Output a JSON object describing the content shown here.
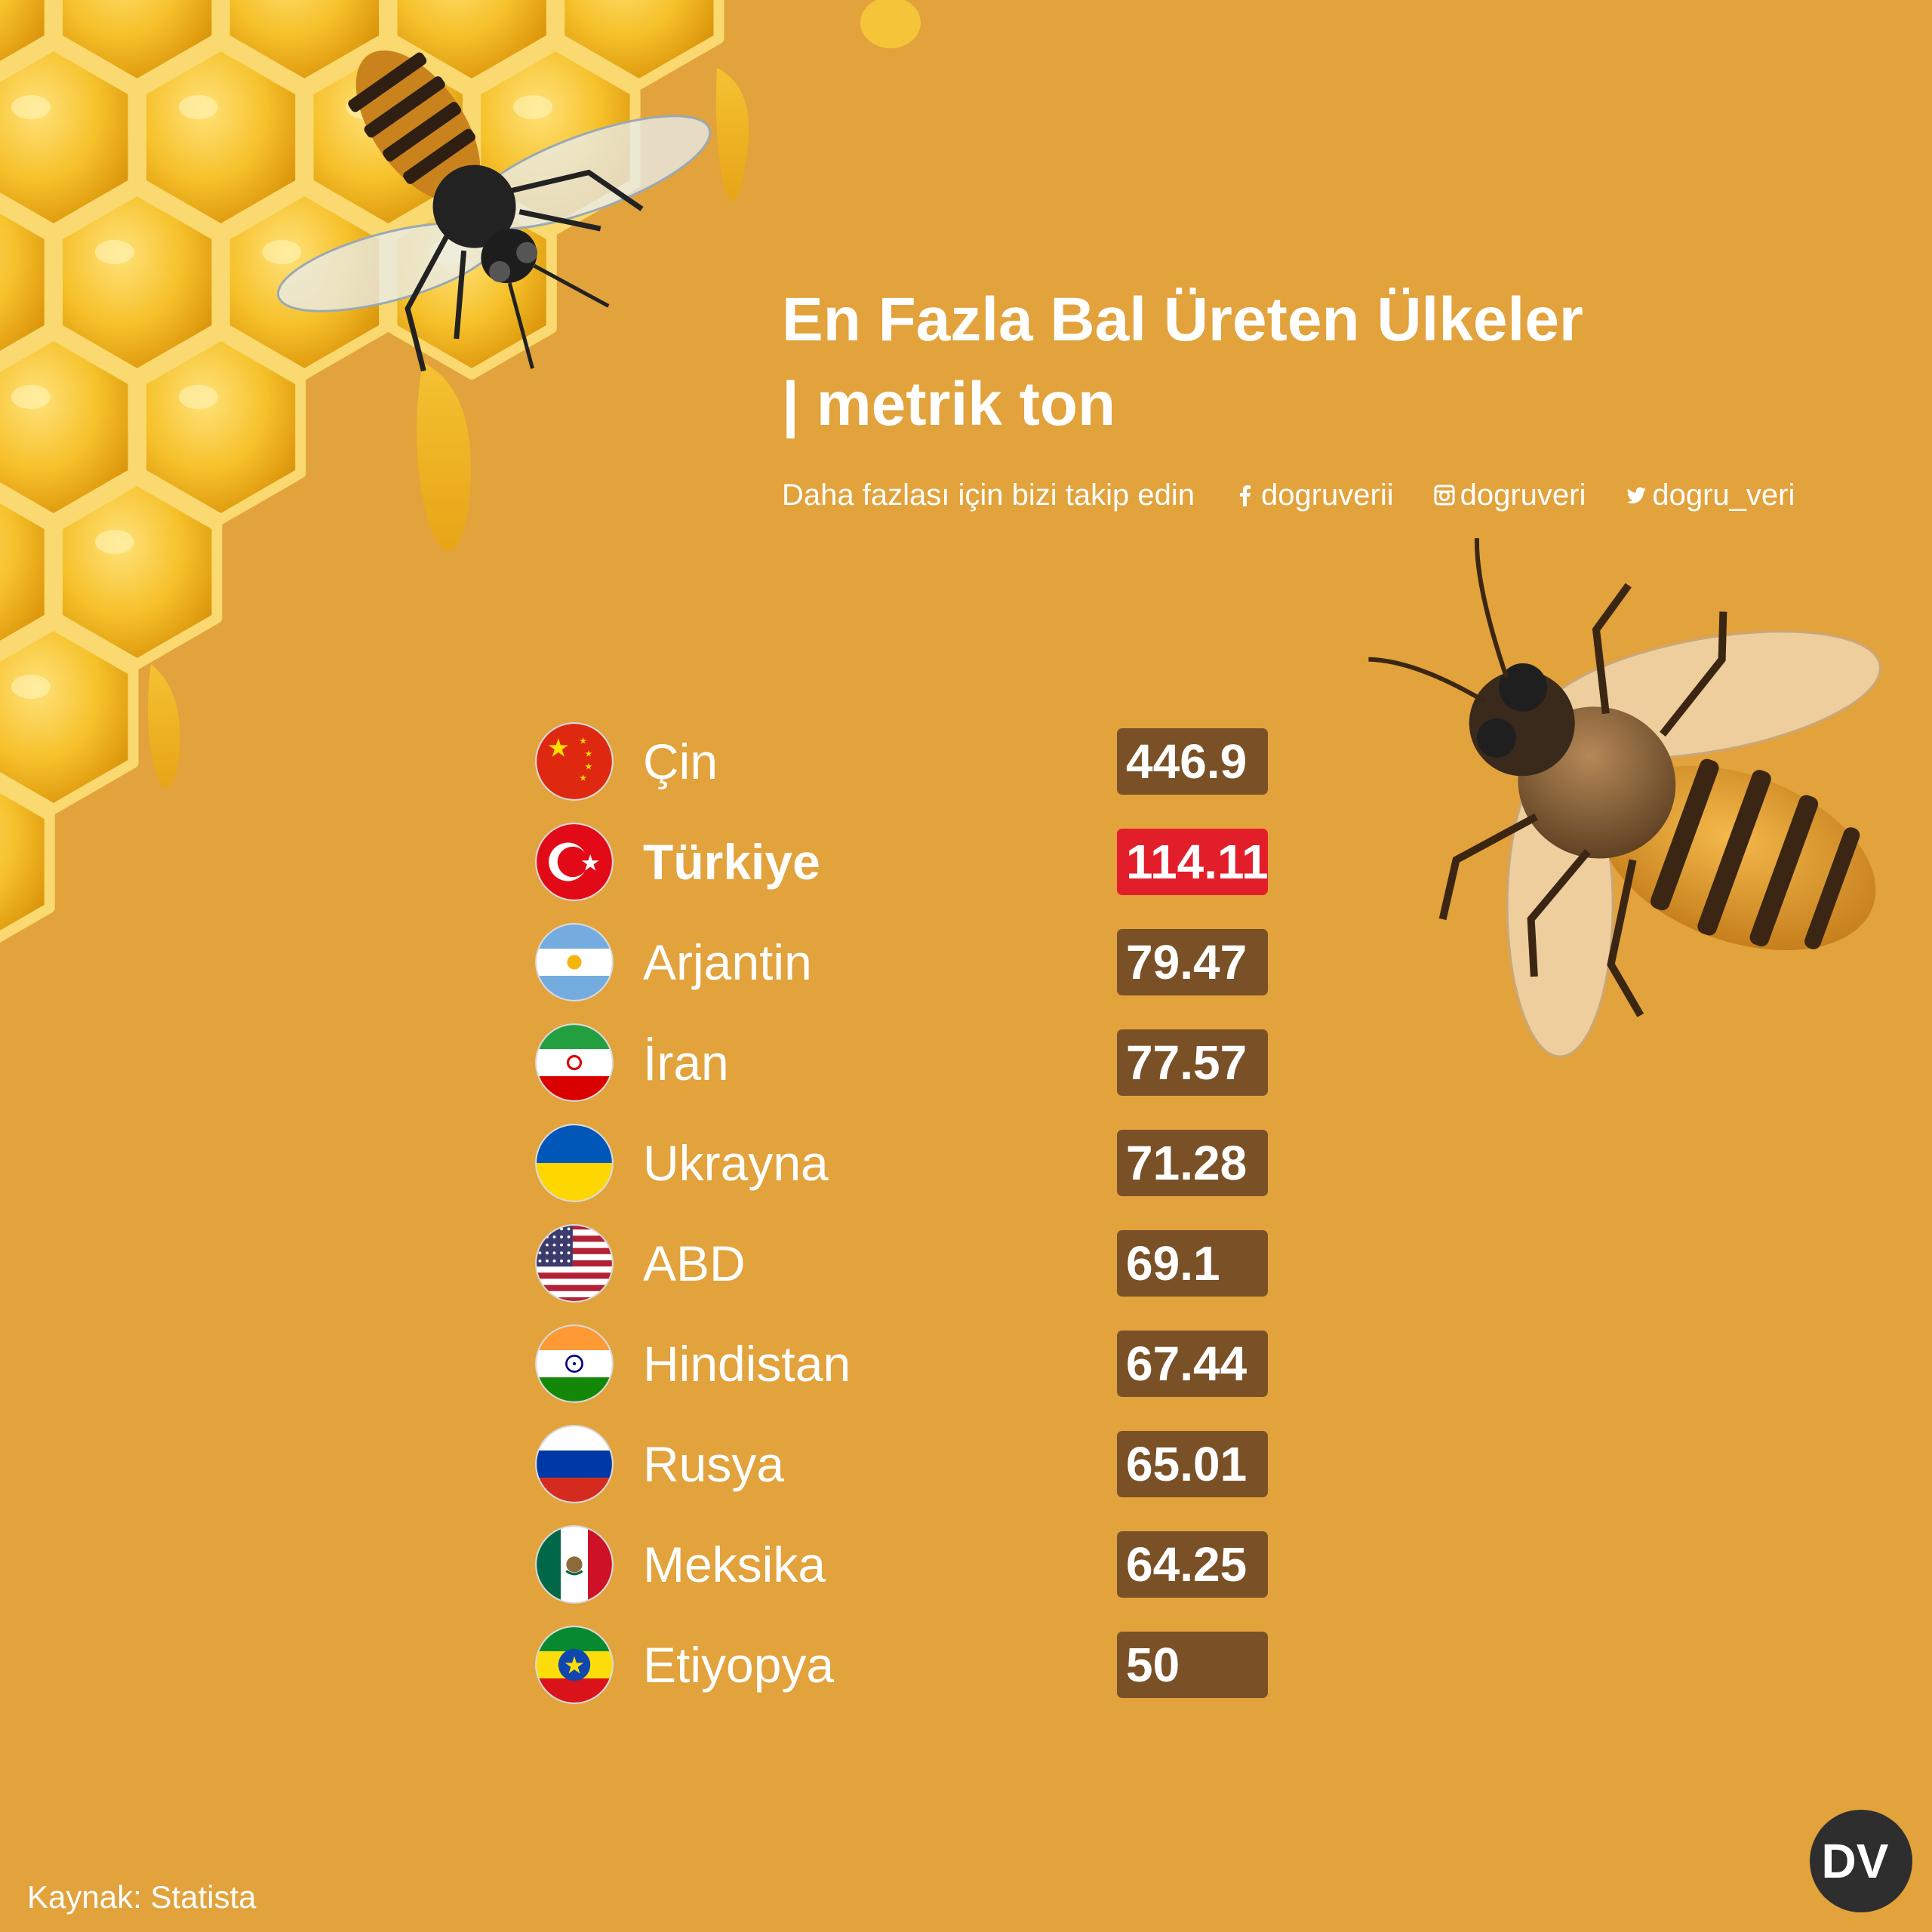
{
  "title_line1": "En Fazla Bal Üreten Ülkeler",
  "title_line2": "| metrik ton",
  "follow_text": "Daha fazlası için bizi takip edin",
  "social": [
    {
      "icon": "facebook-icon",
      "handle": "dogruverii"
    },
    {
      "icon": "instagram-icon",
      "handle": "dogruveri"
    },
    {
      "icon": "twitter-icon",
      "handle": "dogru_veri"
    }
  ],
  "chart_data": {
    "type": "table",
    "title": "En Fazla Bal Üreten Ülkeler | metrik ton",
    "unit": "metrik ton",
    "highlight": "Türkiye",
    "rows": [
      {
        "country": "Çin",
        "value": "446.9",
        "flag": "china-flag-icon"
      },
      {
        "country": "Türkiye",
        "value": "114.11",
        "flag": "turkey-flag-icon",
        "highlight": true
      },
      {
        "country": "Arjantin",
        "value": "79.47",
        "flag": "argentina-flag-icon"
      },
      {
        "country": "İran",
        "value": "77.57",
        "flag": "iran-flag-icon"
      },
      {
        "country": "Ukrayna",
        "value": "71.28",
        "flag": "ukraine-flag-icon"
      },
      {
        "country": "ABD",
        "value": "69.1",
        "flag": "usa-flag-icon"
      },
      {
        "country": "Hindistan",
        "value": "67.44",
        "flag": "india-flag-icon"
      },
      {
        "country": "Rusya",
        "value": "65.01",
        "flag": "russia-flag-icon"
      },
      {
        "country": "Meksika",
        "value": "64.25",
        "flag": "mexico-flag-icon"
      },
      {
        "country": "Etiyopya",
        "value": "50",
        "flag": "ethiopia-flag-icon"
      }
    ]
  },
  "source": "Kaynak: Statista",
  "logo_text": "DV",
  "colors": {
    "background": "#e2a23c",
    "value_box": "#7a5127",
    "highlight_box": "#e31e2b",
    "text": "#ffffff"
  }
}
